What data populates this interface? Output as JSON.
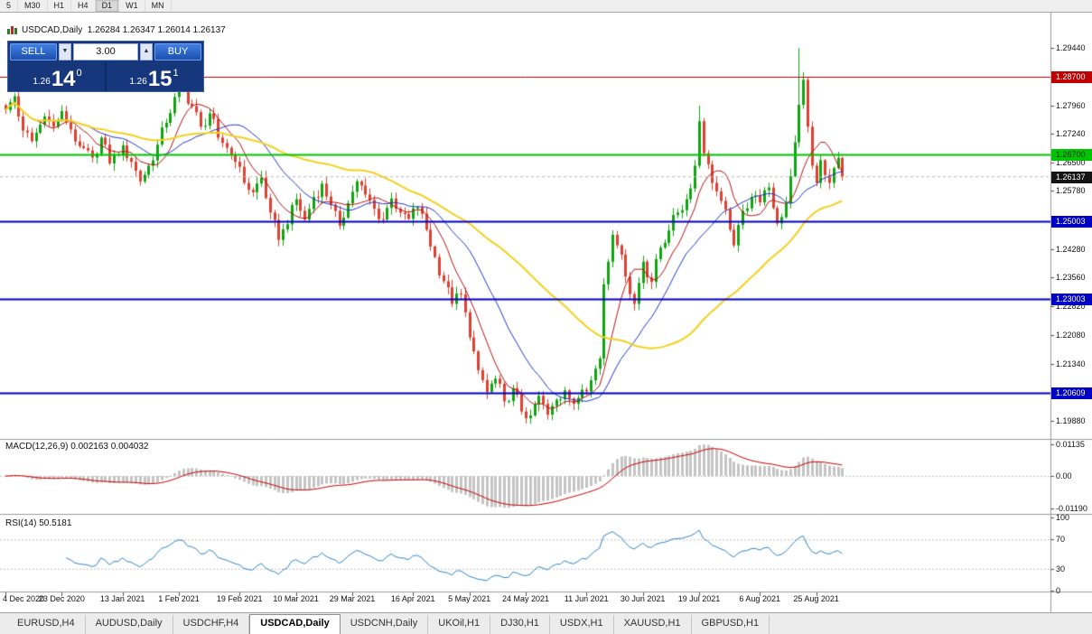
{
  "toolbar": {
    "timeframes": [
      {
        "label": "5",
        "active": false
      },
      {
        "label": "M30",
        "active": false
      },
      {
        "label": "H1",
        "active": false
      },
      {
        "label": "H4",
        "active": false
      },
      {
        "label": "D1",
        "active": true
      },
      {
        "label": "W1",
        "active": false
      },
      {
        "label": "MN",
        "active": false
      }
    ]
  },
  "chart": {
    "ohlc_label": "USDCAD,Daily  1.26284 1.26347 1.26014 1.26137"
  },
  "trade_panel": {
    "sell_label": "SELL",
    "buy_label": "BUY",
    "volume": "3.00",
    "volume_down_glyph": "▼",
    "volume_up_glyph": "▲",
    "bid": {
      "prefix": "1.26",
      "big": "14",
      "sup": "0"
    },
    "ask": {
      "prefix": "1.26",
      "big": "15",
      "sup": "1"
    }
  },
  "macd": {
    "label": "MACD(12,26,9) 0.002163 0.004032",
    "axis": [
      {
        "label": "0.01135",
        "value": 0.01135
      },
      {
        "label": "0.00",
        "value": 0
      },
      {
        "label": "-0.01190",
        "value": -0.0119
      }
    ]
  },
  "rsi": {
    "label": "RSI(14) 50.5181",
    "axis": [
      {
        "label": "100",
        "value": 100
      },
      {
        "label": "70",
        "value": 70
      },
      {
        "label": "30",
        "value": 30
      },
      {
        "label": "0",
        "value": 0
      }
    ]
  },
  "tabs": [
    {
      "label": "EURUSD,H4",
      "active": false
    },
    {
      "label": "AUDUSD,Daily",
      "active": false
    },
    {
      "label": "USDCHF,H4",
      "active": false
    },
    {
      "label": "USDCAD,Daily",
      "active": true
    },
    {
      "label": "USDCNH,Daily",
      "active": false
    },
    {
      "label": "UKOil,H1",
      "active": false
    },
    {
      "label": "DJ30,H1",
      "active": false
    },
    {
      "label": "USDX,H1",
      "active": false
    },
    {
      "label": "XAUUSD,H1",
      "active": false
    },
    {
      "label": "GBPUSD,H1",
      "active": false
    }
  ],
  "chart_data": {
    "type": "candlestick",
    "title": "USDCAD,Daily",
    "symbol": "USDCAD",
    "timeframe": "Daily",
    "current_bar": {
      "open": 1.26284,
      "high": 1.26347,
      "low": 1.26014,
      "close": 1.26137
    },
    "bar_count": 194,
    "ylim": [
      1.1988,
      1.3037
    ],
    "grid": false,
    "keypoints_note": "close-price keypoints [barIndex, close, forcedHigh?, forcedLow?] read from the plot",
    "keypoints": [
      [
        0,
        1.2785
      ],
      [
        2,
        1.282
      ],
      [
        4,
        1.2732
      ],
      [
        6,
        1.2705
      ],
      [
        9,
        1.2768
      ],
      [
        11,
        1.2742
      ],
      [
        13,
        1.2782
      ],
      [
        15,
        1.2735
      ],
      [
        17,
        1.2692
      ],
      [
        20,
        1.2663
      ],
      [
        22,
        1.2714
      ],
      [
        24,
        1.2648
      ],
      [
        27,
        1.2694
      ],
      [
        29,
        1.2652
      ],
      [
        31,
        1.2602
      ],
      [
        33,
        1.2642
      ],
      [
        35,
        1.2696
      ],
      [
        37,
        1.2752
      ],
      [
        39,
        1.2818
      ],
      [
        41,
        1.2836
      ],
      [
        43,
        1.2795
      ],
      [
        45,
        1.2742
      ],
      [
        47,
        1.2776
      ],
      [
        49,
        1.2714
      ],
      [
        51,
        1.2688
      ],
      [
        53,
        1.2652
      ],
      [
        55,
        1.2598
      ],
      [
        57,
        1.2574
      ],
      [
        59,
        1.2612
      ],
      [
        61,
        1.2522
      ],
      [
        63,
        1.2452
      ],
      [
        65,
        1.2492
      ],
      [
        67,
        1.2556
      ],
      [
        69,
        1.2504
      ],
      [
        71,
        1.2562
      ],
      [
        73,
        1.2596
      ],
      [
        75,
        1.2542
      ],
      [
        77,
        1.2488
      ],
      [
        79,
        1.2546
      ],
      [
        81,
        1.2602
      ],
      [
        83,
        1.2568
      ],
      [
        85,
        1.2532
      ],
      [
        87,
        1.2504
      ],
      [
        89,
        1.2558
      ],
      [
        91,
        1.2522
      ],
      [
        93,
        1.2506
      ],
      [
        95,
        1.2536
      ],
      [
        97,
        1.2478
      ],
      [
        99,
        1.2408
      ],
      [
        101,
        1.2346
      ],
      [
        103,
        1.2288
      ],
      [
        105,
        1.2312
      ],
      [
        107,
        1.2202
      ],
      [
        109,
        1.2118
      ],
      [
        111,
        1.2062
      ],
      [
        113,
        1.2096
      ],
      [
        115,
        1.2038
      ],
      [
        117,
        1.2072
      ],
      [
        119,
        1.2012
      ],
      [
        121,
        1.2002,
        null,
        1.1988
      ],
      [
        123,
        1.2052
      ],
      [
        125,
        1.2004
      ],
      [
        127,
        1.2042
      ],
      [
        129,
        1.2066
      ],
      [
        131,
        1.2032
      ],
      [
        133,
        1.2068
      ],
      [
        135,
        1.2092
      ],
      [
        137,
        1.2148
      ],
      [
        138,
        1.2338
      ],
      [
        140,
        1.2465
      ],
      [
        141,
        1.2438
      ],
      [
        143,
        1.2358
      ],
      [
        145,
        1.2288
      ],
      [
        147,
        1.2396
      ],
      [
        149,
        1.2344
      ],
      [
        151,
        1.2432
      ],
      [
        153,
        1.2476
      ],
      [
        155,
        1.2522
      ],
      [
        157,
        1.2556
      ],
      [
        159,
        1.2642
      ],
      [
        160,
        1.2756,
        1.2796
      ],
      [
        161,
        1.2674
      ],
      [
        163,
        1.2598
      ],
      [
        165,
        1.2552
      ],
      [
        167,
        1.2478
      ],
      [
        168,
        1.2438
      ],
      [
        170,
        1.2526
      ],
      [
        172,
        1.2562
      ],
      [
        174,
        1.2548
      ],
      [
        176,
        1.2586
      ],
      [
        178,
        1.2494
      ],
      [
        180,
        1.2546
      ],
      [
        182,
        1.2702
      ],
      [
        183,
        1.2798,
        1.2944
      ],
      [
        184,
        1.2862,
        1.2882
      ],
      [
        185,
        1.2742
      ],
      [
        186,
        1.2642
      ],
      [
        187,
        1.2598
      ],
      [
        188,
        1.2656
      ],
      [
        189,
        1.2618
      ],
      [
        190,
        1.2598
      ],
      [
        191,
        1.2636
      ],
      [
        192,
        1.2662
      ],
      [
        193,
        1.26137
      ]
    ],
    "x_labels": [
      {
        "label": "4 Dec 2020",
        "i": 0
      },
      {
        "label": "23 Dec 2020",
        "i": 13
      },
      {
        "label": "13 Jan 2021",
        "i": 27
      },
      {
        "label": "1 Feb 2021",
        "i": 40
      },
      {
        "label": "19 Feb 2021",
        "i": 54
      },
      {
        "label": "10 Mar 2021",
        "i": 67
      },
      {
        "label": "29 Mar 2021",
        "i": 80
      },
      {
        "label": "16 Apr 2021",
        "i": 94
      },
      {
        "label": "5 May 2021",
        "i": 107
      },
      {
        "label": "24 May 2021",
        "i": 120
      },
      {
        "label": "11 Jun 2021",
        "i": 134
      },
      {
        "label": "30 Jun 2021",
        "i": 147
      },
      {
        "label": "19 Jul 2021",
        "i": 160
      },
      {
        "label": "6 Aug 2021",
        "i": 174
      },
      {
        "label": "25 Aug 2021",
        "i": 187
      }
    ],
    "y_ticks": [
      {
        "label": "1.29440",
        "price": 1.2944
      },
      {
        "label": "1.27960",
        "price": 1.2796
      },
      {
        "label": "1.27240",
        "price": 1.2724
      },
      {
        "label": "1.26500",
        "price": 1.265
      },
      {
        "label": "1.25780",
        "price": 1.2578
      },
      {
        "label": "1.24280",
        "price": 1.2428
      },
      {
        "label": "1.23560",
        "price": 1.2356
      },
      {
        "label": "1.22820",
        "price": 1.2282
      },
      {
        "label": "1.22080",
        "price": 1.2208
      },
      {
        "label": "1.21340",
        "price": 1.2134
      },
      {
        "label": "1.19880",
        "price": 1.1988
      }
    ],
    "y_badges": [
      {
        "label": "1.28700",
        "price": 1.287,
        "bg": "#c00000",
        "fg": "#ffffff"
      },
      {
        "label": "1.26700",
        "price": 1.267,
        "bg": "#00c400",
        "fg": "#062e06"
      },
      {
        "label": "1.26137",
        "price": 1.26137,
        "bg": "#141414",
        "fg": "#ffffff"
      },
      {
        "label": "1.25003",
        "price": 1.25003,
        "bg": "#0000c4",
        "fg": "#ffffff"
      },
      {
        "label": "1.23003",
        "price": 1.23003,
        "bg": "#0000c4",
        "fg": "#ffffff"
      },
      {
        "label": "1.20609",
        "price": 1.20609,
        "bg": "#0000c4",
        "fg": "#ffffff"
      }
    ],
    "hlines": [
      {
        "price": 1.287,
        "color": "#c00000",
        "width": 1
      },
      {
        "price": 1.267,
        "color": "#00c400",
        "width": 2
      },
      {
        "price": 1.25003,
        "color": "#0000c4",
        "width": 2
      },
      {
        "price": 1.23003,
        "color": "#0000c4",
        "width": 2
      },
      {
        "price": 1.20609,
        "color": "#0000c4",
        "width": 2
      }
    ],
    "bid_line": {
      "price": 1.26137,
      "color": "#b8b8b8"
    },
    "moving_averages": [
      {
        "period": 8,
        "color": "#b81414",
        "width": 1
      },
      {
        "period": 20,
        "color": "#2238c8",
        "width": 1
      },
      {
        "period": 50,
        "color": "#f2d21f",
        "width": 2
      }
    ],
    "indicators": {
      "macd": {
        "fast": 12,
        "slow": 26,
        "signal": 9,
        "current_main": 0.002163,
        "current_signal": 0.004032
      },
      "rsi": {
        "period": 14,
        "current": 50.5181,
        "levels": [
          70,
          30
        ]
      }
    },
    "colors": {
      "up": "#10a410",
      "down": "#df4030",
      "macd_hist": "#c4c4c4",
      "macd_signal": "#cc0000",
      "rsi_line": "#2e86c8",
      "separator": "#9a9a9a",
      "tick": "#555555"
    }
  }
}
